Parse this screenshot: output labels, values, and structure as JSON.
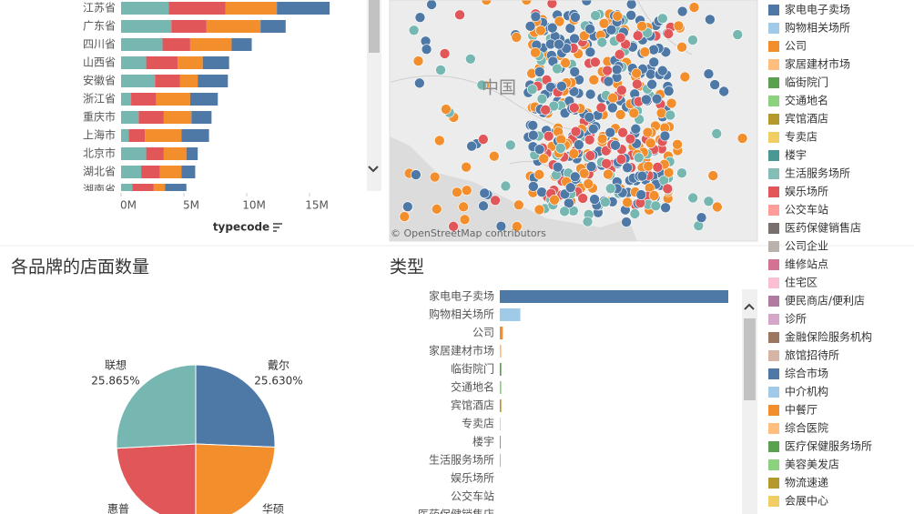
{
  "chart_data": [
    {
      "type": "bar",
      "orientation": "horizontal",
      "stacked": true,
      "categories": [
        "江苏省",
        "广东省",
        "四川省",
        "山西省",
        "安徽省",
        "浙江省",
        "重庆市",
        "上海市",
        "北京市",
        "湖北省",
        "湖南省"
      ],
      "series": [
        {
          "color": "#76b7b2",
          "values": [
            3800000,
            4000000,
            3300000,
            2000000,
            2700000,
            800000,
            1400000,
            600000,
            2000000,
            1600000,
            900000
          ]
        },
        {
          "color": "#e15759",
          "values": [
            4500000,
            2800000,
            2200000,
            2500000,
            2000000,
            2000000,
            2000000,
            1300000,
            1400000,
            1500000,
            1700000
          ]
        },
        {
          "color": "#f28e2b",
          "values": [
            4100000,
            4300000,
            3300000,
            2000000,
            1400000,
            2700000,
            2200000,
            2900000,
            1800000,
            1700000,
            900000
          ]
        },
        {
          "color": "#4e79a7",
          "values": [
            4200000,
            2000000,
            1600000,
            2100000,
            2400000,
            2200000,
            1600000,
            2200000,
            900000,
            1100000,
            1700000
          ]
        }
      ],
      "xlim": [
        0,
        19600000
      ],
      "xticks": [
        {
          "value": 0,
          "label": "0M"
        },
        {
          "value": 5000000,
          "label": "5M"
        },
        {
          "value": 10000000,
          "label": "10M"
        },
        {
          "value": 15000000,
          "label": "15M"
        }
      ],
      "x_label": "typecode"
    },
    {
      "type": "map",
      "place_label": "中国",
      "attribution": "© OpenStreetMap contributors",
      "legend": [
        {
          "name": "家电电子卖场",
          "color": "#4e79a7"
        },
        {
          "name": "购物相关场所",
          "color": "#a0cbe8"
        },
        {
          "name": "公司",
          "color": "#f28e2b"
        },
        {
          "name": "家居建材市场",
          "color": "#ffbe7d"
        },
        {
          "name": "临街院门",
          "color": "#59a14f"
        },
        {
          "name": "交通地名",
          "color": "#8cd17d"
        },
        {
          "name": "宾馆酒店",
          "color": "#b6992d"
        },
        {
          "name": "专卖店",
          "color": "#f1ce63"
        },
        {
          "name": "楼宇",
          "color": "#499894"
        },
        {
          "name": "生活服务场所",
          "color": "#86bcb6"
        },
        {
          "name": "娱乐场所",
          "color": "#e15759"
        },
        {
          "name": "公交车站",
          "color": "#ff9d9a"
        },
        {
          "name": "医药保健销售店",
          "color": "#79706e"
        },
        {
          "name": "公司企业",
          "color": "#bab0ac"
        },
        {
          "name": "维修站点",
          "color": "#d37295"
        },
        {
          "name": "住宅区",
          "color": "#fabfd2"
        },
        {
          "name": "便民商店/便利店",
          "color": "#b07aa1"
        },
        {
          "name": "诊所",
          "color": "#d4a6c8"
        },
        {
          "name": "金融保险服务机构",
          "color": "#9d7660"
        },
        {
          "name": "旅馆招待所",
          "color": "#d7b5a6"
        },
        {
          "name": "综合市场",
          "color": "#4e79a7"
        },
        {
          "name": "中介机构",
          "color": "#a0cbe8"
        },
        {
          "name": "中餐厅",
          "color": "#f28e2b"
        },
        {
          "name": "综合医院",
          "color": "#ffbe7d"
        },
        {
          "name": "医疗保健服务场所",
          "color": "#59a14f"
        },
        {
          "name": "美容美发店",
          "color": "#8cd17d"
        },
        {
          "name": "物流速递",
          "color": "#b6992d"
        },
        {
          "name": "会展中心",
          "color": "#f1ce63"
        }
      ]
    },
    {
      "type": "pie",
      "title": "各品牌的店面数量",
      "categories": [
        "戴尔",
        "华硕",
        "惠普",
        "联想"
      ],
      "values": [
        25.63,
        24.37,
        24.135,
        25.865
      ],
      "value_labels": [
        "25.630%",
        null,
        null,
        "25.865%"
      ],
      "colors": [
        "#4e79a7",
        "#f28e2b",
        "#e15759",
        "#76b7b2"
      ]
    },
    {
      "type": "bar",
      "orientation": "horizontal",
      "title": "类型",
      "categories": [
        "家电电子卖场",
        "购物相关场所",
        "公司",
        "家居建材市场",
        "临街院门",
        "交通地名",
        "宾馆酒店",
        "专卖店",
        "楼宇",
        "生活服务场所",
        "娱乐场所",
        "公交车站",
        "医药保健销售店"
      ],
      "values": [
        300,
        27,
        4,
        2,
        2,
        2,
        2,
        1,
        1,
        1,
        0,
        0,
        0
      ],
      "colors": [
        "#4e79a7",
        "#a0cbe8",
        "#f28e2b",
        "#ffbe7d",
        "#59a14f",
        "#8cd17d",
        "#b6992d",
        "#f1ce63",
        "#499894",
        "#86bcb6",
        "#e15759",
        "#ff9d9a",
        "#79706e"
      ],
      "xlim": [
        0,
        300
      ]
    }
  ]
}
